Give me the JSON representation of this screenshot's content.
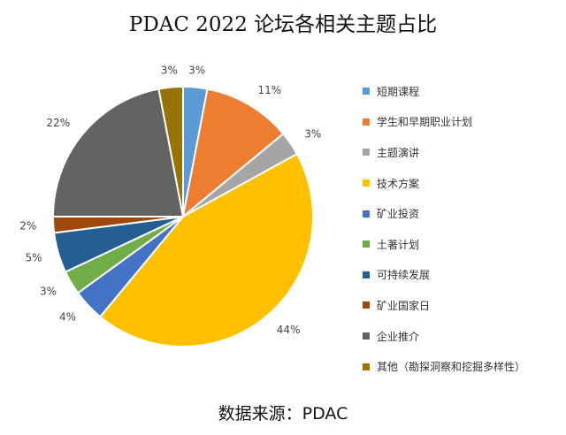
{
  "chart_data": {
    "type": "pie",
    "title": "PDAC 2022 论坛各相关主题占比",
    "source_label": "数据来源：",
    "source_value": "PDAC",
    "slices": [
      {
        "name": "短期课程",
        "value": 3,
        "label": "3%",
        "color": "#5b9bd5"
      },
      {
        "name": "学生和早期职业计划",
        "value": 11,
        "label": "11%",
        "color": "#ed7d31"
      },
      {
        "name": "主题演讲",
        "value": 3,
        "label": "3%",
        "color": "#a5a5a5"
      },
      {
        "name": "技术方案",
        "value": 44,
        "label": "44%",
        "color": "#ffc000"
      },
      {
        "name": "矿业投资",
        "value": 4,
        "label": "4%",
        "color": "#4472c4"
      },
      {
        "name": "土著计划",
        "value": 3,
        "label": "3%",
        "color": "#70ad47"
      },
      {
        "name": "可持续发展",
        "value": 5,
        "label": "5%",
        "color": "#255e91"
      },
      {
        "name": "矿业国家日",
        "value": 2,
        "label": "2%",
        "color": "#9e480e"
      },
      {
        "name": "企业推介",
        "value": 22,
        "label": "22%",
        "color": "#636363"
      },
      {
        "name": "其他（勘探洞察和挖掘多样性）",
        "value": 3,
        "label": "3%",
        "color": "#997300"
      }
    ],
    "legend_position": "right",
    "start": "12 o'clock",
    "direction": "clockwise"
  }
}
